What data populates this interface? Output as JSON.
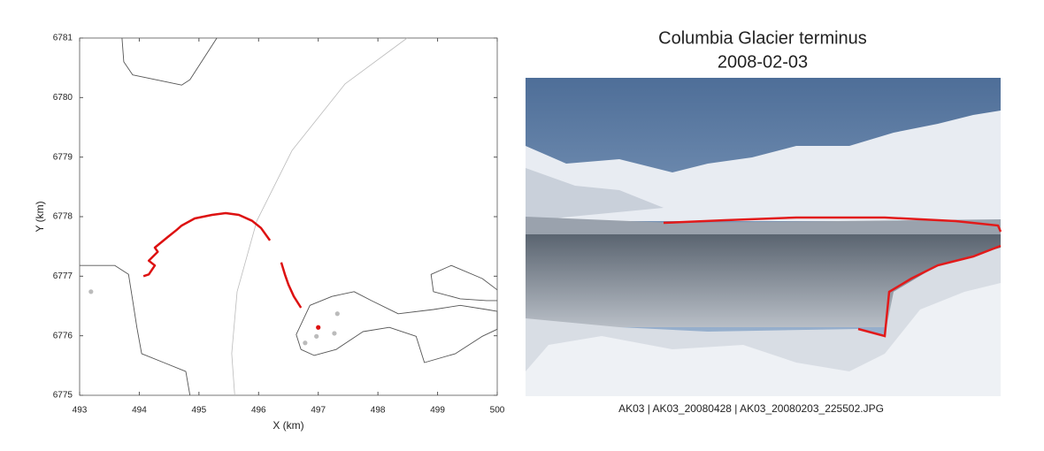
{
  "chart_data": {
    "type": "line",
    "xlabel": "X (km)",
    "ylabel": "Y (km)",
    "xlim": [
      493,
      500
    ],
    "ylim": [
      6775,
      6781
    ],
    "xticks": [
      493,
      494,
      495,
      496,
      497,
      498,
      499,
      500
    ],
    "yticks": [
      6775,
      6776,
      6777,
      6778,
      6779,
      6780,
      6781
    ],
    "series": [
      {
        "type": "line",
        "color": "#bbbbbb",
        "width": 0.8,
        "x": [
          495.6,
          495.55,
          495.64,
          495.97,
          496.56,
          497.45,
          498.49
        ],
        "values": [
          6775.0,
          6775.7,
          6776.74,
          6777.93,
          6779.11,
          6780.23,
          6781.0
        ]
      },
      {
        "type": "line",
        "color": "#555555",
        "width": 0.9,
        "x": [
          493.71,
          493.74,
          493.89,
          494.71,
          494.85,
          495.3
        ],
        "values": [
          6781.0,
          6780.6,
          6780.38,
          6780.21,
          6780.3,
          6781.0
        ]
      },
      {
        "type": "line",
        "color": "#555555",
        "width": 0.9,
        "x": [
          493.0,
          493.59,
          493.82,
          493.89,
          493.96,
          494.04,
          494.41,
          494.78,
          494.85
        ],
        "values": [
          6777.18,
          6777.18,
          6777.03,
          6776.59,
          6776.14,
          6775.7,
          6775.55,
          6775.4,
          6775.0
        ]
      },
      {
        "type": "line",
        "color": "#555555",
        "width": 0.9,
        "x": [
          496.71,
          496.63,
          496.86,
          497.23,
          497.6,
          497.89,
          498.34,
          498.93,
          499.38,
          499.82,
          500.0,
          500.0,
          499.75,
          499.3,
          498.78,
          498.64,
          498.19,
          497.75,
          497.3,
          496.93,
          496.71
        ],
        "values": [
          6775.77,
          6776.02,
          6776.51,
          6776.66,
          6776.74,
          6776.59,
          6776.37,
          6776.44,
          6776.51,
          6776.44,
          6776.41,
          6776.11,
          6775.99,
          6775.7,
          6775.55,
          6775.99,
          6776.14,
          6776.07,
          6775.77,
          6775.67,
          6775.77
        ]
      },
      {
        "type": "line",
        "color": "#555555",
        "width": 0.9,
        "x": [
          500.0,
          499.75,
          499.23,
          498.89,
          498.93,
          499.38,
          499.82,
          500.0
        ],
        "values": [
          6776.77,
          6776.96,
          6777.18,
          6777.03,
          6776.74,
          6776.62,
          6776.59,
          6776.59
        ]
      },
      {
        "type": "line",
        "color": "#dd1111",
        "width": 2.5,
        "x": [
          494.07,
          494.16,
          494.26,
          494.16,
          494.31,
          494.26,
          494.48,
          494.63,
          494.71,
          494.93,
          495.22,
          495.45,
          495.67,
          495.89,
          496.04,
          496.19,
          null,
          496.38,
          496.44,
          496.5,
          496.59,
          496.71
        ],
        "values": [
          6777.0,
          6777.03,
          6777.18,
          6777.26,
          6777.41,
          6777.48,
          6777.66,
          6777.78,
          6777.85,
          6777.97,
          6778.03,
          6778.06,
          6778.03,
          6777.93,
          6777.81,
          6777.6,
          null,
          6777.23,
          6777.03,
          6776.86,
          6776.66,
          6776.47
        ]
      },
      {
        "type": "scatter",
        "color": "#bbbbbb",
        "x": [
          493.19,
          496.78,
          496.97,
          497.27,
          497.32
        ],
        "values": [
          6776.74,
          6775.88,
          6775.99,
          6776.04,
          6776.37
        ]
      },
      {
        "type": "scatter",
        "color": "#dd1111",
        "x": [
          497.0
        ],
        "values": [
          6776.14
        ]
      }
    ]
  },
  "photo": {
    "title": "Columbia Glacier terminus",
    "date": "2008-02-03",
    "caption": "AK03  |  AK03_20080428  |  AK03_20080203_225502.JPG"
  }
}
